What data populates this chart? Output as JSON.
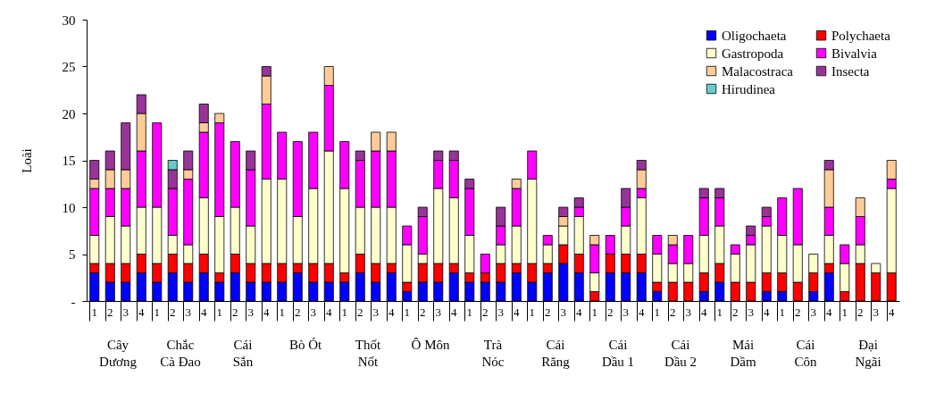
{
  "chart_data": {
    "type": "bar",
    "stacked": true,
    "ylabel": "Loài",
    "categories": [
      "1",
      "2",
      "3",
      "4",
      "1",
      "2",
      "3",
      "4",
      "1",
      "2",
      "3",
      "4",
      "1",
      "2",
      "3",
      "4",
      "1",
      "2",
      "3",
      "4",
      "1",
      "2",
      "3",
      "4",
      "1",
      "2",
      "3",
      "4",
      "1",
      "2",
      "3",
      "4",
      "1",
      "2",
      "3",
      "4",
      "1",
      "2",
      "3",
      "4",
      "1",
      "2",
      "3",
      "4",
      "1",
      "2",
      "3",
      "4",
      "1",
      "2",
      "3",
      "4"
    ],
    "annotations": [
      "Cây Dương",
      "Chắc Cà Đao",
      "Cái Sắn",
      "Bò Ót",
      "Thốt Nốt",
      "Ô Môn",
      "Trà Nóc",
      "Cái Răng",
      "Cái Dầu 1",
      "Cái Dầu 2",
      "Mái Dầm",
      "Cái Côn",
      "Đại Ngãi"
    ],
    "series": [
      {
        "name": "Oligochaeta",
        "color": "#0000ff",
        "values": [
          3,
          2,
          2,
          3,
          2,
          3,
          2,
          3,
          2,
          3,
          2,
          2,
          2,
          3,
          2,
          2,
          2,
          3,
          2,
          3,
          1,
          2,
          2,
          3,
          2,
          2,
          2,
          3,
          2,
          3,
          4,
          3,
          0,
          3,
          3,
          3,
          1,
          0,
          0,
          1,
          2,
          0,
          0,
          1,
          1,
          0,
          1,
          3,
          0,
          0,
          0,
          0
        ]
      },
      {
        "name": "Polychaeta",
        "color": "#ff0000",
        "values": [
          1,
          2,
          2,
          2,
          2,
          2,
          2,
          2,
          1,
          2,
          2,
          2,
          2,
          1,
          2,
          2,
          1,
          2,
          2,
          1,
          1,
          2,
          2,
          1,
          1,
          1,
          2,
          1,
          2,
          1,
          2,
          2,
          1,
          2,
          2,
          2,
          1,
          2,
          2,
          2,
          2,
          2,
          2,
          2,
          2,
          2,
          2,
          1,
          1,
          4,
          3,
          3
        ]
      },
      {
        "name": "Gastropoda",
        "color": "#ffffcc",
        "values": [
          3,
          5,
          4,
          5,
          6,
          2,
          2,
          6,
          6,
          5,
          4,
          9,
          9,
          5,
          8,
          12,
          9,
          5,
          6,
          6,
          4,
          1,
          8,
          7,
          4,
          0,
          2,
          4,
          9,
          2,
          2,
          4,
          2,
          0,
          3,
          6,
          3,
          2,
          2,
          4,
          4,
          3,
          4,
          5,
          4,
          4,
          2,
          3,
          3,
          2,
          1,
          9
        ]
      },
      {
        "name": "Bivalvia",
        "color": "#ff00ff",
        "values": [
          5,
          3,
          4,
          6,
          9,
          5,
          7,
          7,
          10,
          7,
          6,
          8,
          5,
          8,
          6,
          7,
          5,
          5,
          6,
          6,
          2,
          4,
          3,
          4,
          5,
          2,
          2,
          4,
          3,
          1,
          0,
          1,
          3,
          2,
          2,
          1,
          2,
          2,
          3,
          4,
          3,
          1,
          1,
          1,
          4,
          6,
          0,
          3,
          2,
          3,
          0,
          1
        ]
      },
      {
        "name": "Malacostraca",
        "color": "#ffcc99",
        "values": [
          1,
          2,
          2,
          4,
          0,
          0,
          1,
          1,
          1,
          0,
          0,
          3,
          0,
          0,
          0,
          2,
          0,
          0,
          2,
          2,
          0,
          0,
          0,
          0,
          0,
          0,
          0,
          1,
          0,
          0,
          1,
          0,
          1,
          0,
          0,
          2,
          0,
          1,
          0,
          0,
          0,
          0,
          0,
          0,
          0,
          0,
          0,
          4,
          0,
          2,
          0,
          2
        ]
      },
      {
        "name": "Insecta",
        "color": "#993399",
        "values": [
          2,
          2,
          5,
          2,
          0,
          2,
          2,
          2,
          0,
          0,
          2,
          1,
          0,
          0,
          0,
          0,
          0,
          1,
          0,
          0,
          0,
          1,
          1,
          1,
          1,
          0,
          2,
          0,
          0,
          0,
          1,
          1,
          0,
          0,
          2,
          1,
          0,
          0,
          0,
          1,
          1,
          0,
          1,
          1,
          0,
          0,
          0,
          1,
          0,
          0,
          0,
          0
        ]
      },
      {
        "name": "Hirudinea",
        "color": "#66cccc",
        "values": [
          0,
          0,
          0,
          0,
          0,
          1,
          0,
          0,
          0,
          0,
          0,
          0,
          0,
          0,
          0,
          0,
          0,
          0,
          0,
          0,
          0,
          0,
          0,
          0,
          0,
          0,
          0,
          0,
          0,
          0,
          0,
          0,
          0,
          0,
          0,
          0,
          0,
          0,
          0,
          0,
          0,
          0,
          0,
          0,
          0,
          0,
          0,
          0,
          0,
          0,
          0,
          0
        ]
      }
    ],
    "ylim": [
      0,
      30
    ],
    "yticks": [
      {
        "value": 0,
        "label": "-"
      },
      5,
      10,
      15,
      20,
      25,
      30
    ],
    "grid": false,
    "legend": "top right"
  }
}
